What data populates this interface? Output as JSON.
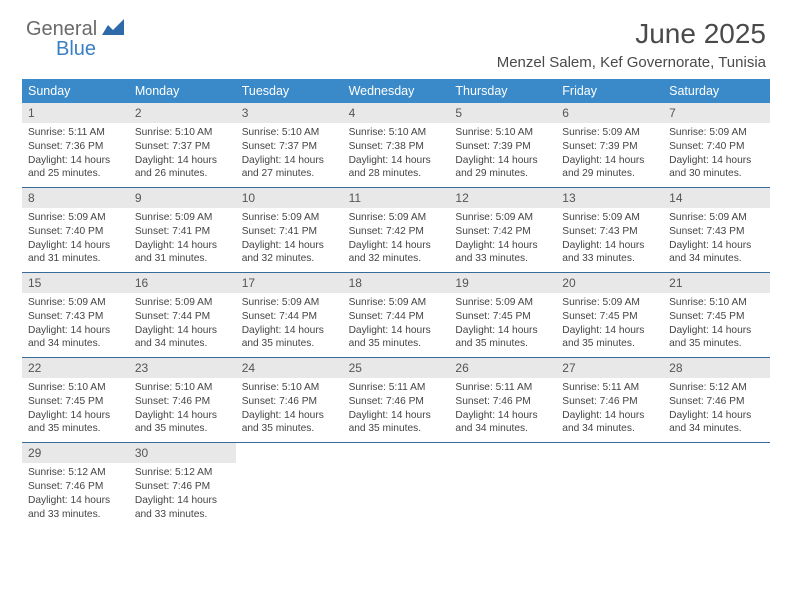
{
  "logo": {
    "text1": "General",
    "text2": "Blue"
  },
  "title": "June 2025",
  "location": "Menzel Salem, Kef Governorate, Tunisia",
  "colors": {
    "header_bg": "#3a8ac9",
    "header_text": "#ffffff",
    "daynum_bg": "#e8e8e8",
    "week_divider": "#3a6a9a",
    "logo_gray": "#6a6a6a",
    "logo_blue": "#3a7fc4",
    "body_text": "#444444"
  },
  "weekdays": [
    "Sunday",
    "Monday",
    "Tuesday",
    "Wednesday",
    "Thursday",
    "Friday",
    "Saturday"
  ],
  "weeks": [
    [
      {
        "n": "1",
        "sr": "5:11 AM",
        "ss": "7:36 PM",
        "dl": "Daylight: 14 hours and 25 minutes."
      },
      {
        "n": "2",
        "sr": "5:10 AM",
        "ss": "7:37 PM",
        "dl": "Daylight: 14 hours and 26 minutes."
      },
      {
        "n": "3",
        "sr": "5:10 AM",
        "ss": "7:37 PM",
        "dl": "Daylight: 14 hours and 27 minutes."
      },
      {
        "n": "4",
        "sr": "5:10 AM",
        "ss": "7:38 PM",
        "dl": "Daylight: 14 hours and 28 minutes."
      },
      {
        "n": "5",
        "sr": "5:10 AM",
        "ss": "7:39 PM",
        "dl": "Daylight: 14 hours and 29 minutes."
      },
      {
        "n": "6",
        "sr": "5:09 AM",
        "ss": "7:39 PM",
        "dl": "Daylight: 14 hours and 29 minutes."
      },
      {
        "n": "7",
        "sr": "5:09 AM",
        "ss": "7:40 PM",
        "dl": "Daylight: 14 hours and 30 minutes."
      }
    ],
    [
      {
        "n": "8",
        "sr": "5:09 AM",
        "ss": "7:40 PM",
        "dl": "Daylight: 14 hours and 31 minutes."
      },
      {
        "n": "9",
        "sr": "5:09 AM",
        "ss": "7:41 PM",
        "dl": "Daylight: 14 hours and 31 minutes."
      },
      {
        "n": "10",
        "sr": "5:09 AM",
        "ss": "7:41 PM",
        "dl": "Daylight: 14 hours and 32 minutes."
      },
      {
        "n": "11",
        "sr": "5:09 AM",
        "ss": "7:42 PM",
        "dl": "Daylight: 14 hours and 32 minutes."
      },
      {
        "n": "12",
        "sr": "5:09 AM",
        "ss": "7:42 PM",
        "dl": "Daylight: 14 hours and 33 minutes."
      },
      {
        "n": "13",
        "sr": "5:09 AM",
        "ss": "7:43 PM",
        "dl": "Daylight: 14 hours and 33 minutes."
      },
      {
        "n": "14",
        "sr": "5:09 AM",
        "ss": "7:43 PM",
        "dl": "Daylight: 14 hours and 34 minutes."
      }
    ],
    [
      {
        "n": "15",
        "sr": "5:09 AM",
        "ss": "7:43 PM",
        "dl": "Daylight: 14 hours and 34 minutes."
      },
      {
        "n": "16",
        "sr": "5:09 AM",
        "ss": "7:44 PM",
        "dl": "Daylight: 14 hours and 34 minutes."
      },
      {
        "n": "17",
        "sr": "5:09 AM",
        "ss": "7:44 PM",
        "dl": "Daylight: 14 hours and 35 minutes."
      },
      {
        "n": "18",
        "sr": "5:09 AM",
        "ss": "7:44 PM",
        "dl": "Daylight: 14 hours and 35 minutes."
      },
      {
        "n": "19",
        "sr": "5:09 AM",
        "ss": "7:45 PM",
        "dl": "Daylight: 14 hours and 35 minutes."
      },
      {
        "n": "20",
        "sr": "5:09 AM",
        "ss": "7:45 PM",
        "dl": "Daylight: 14 hours and 35 minutes."
      },
      {
        "n": "21",
        "sr": "5:10 AM",
        "ss": "7:45 PM",
        "dl": "Daylight: 14 hours and 35 minutes."
      }
    ],
    [
      {
        "n": "22",
        "sr": "5:10 AM",
        "ss": "7:45 PM",
        "dl": "Daylight: 14 hours and 35 minutes."
      },
      {
        "n": "23",
        "sr": "5:10 AM",
        "ss": "7:46 PM",
        "dl": "Daylight: 14 hours and 35 minutes."
      },
      {
        "n": "24",
        "sr": "5:10 AM",
        "ss": "7:46 PM",
        "dl": "Daylight: 14 hours and 35 minutes."
      },
      {
        "n": "25",
        "sr": "5:11 AM",
        "ss": "7:46 PM",
        "dl": "Daylight: 14 hours and 35 minutes."
      },
      {
        "n": "26",
        "sr": "5:11 AM",
        "ss": "7:46 PM",
        "dl": "Daylight: 14 hours and 34 minutes."
      },
      {
        "n": "27",
        "sr": "5:11 AM",
        "ss": "7:46 PM",
        "dl": "Daylight: 14 hours and 34 minutes."
      },
      {
        "n": "28",
        "sr": "5:12 AM",
        "ss": "7:46 PM",
        "dl": "Daylight: 14 hours and 34 minutes."
      }
    ],
    [
      {
        "n": "29",
        "sr": "5:12 AM",
        "ss": "7:46 PM",
        "dl": "Daylight: 14 hours and 33 minutes."
      },
      {
        "n": "30",
        "sr": "5:12 AM",
        "ss": "7:46 PM",
        "dl": "Daylight: 14 hours and 33 minutes."
      },
      null,
      null,
      null,
      null,
      null
    ]
  ],
  "labels": {
    "sunrise": "Sunrise:",
    "sunset": "Sunset:"
  }
}
